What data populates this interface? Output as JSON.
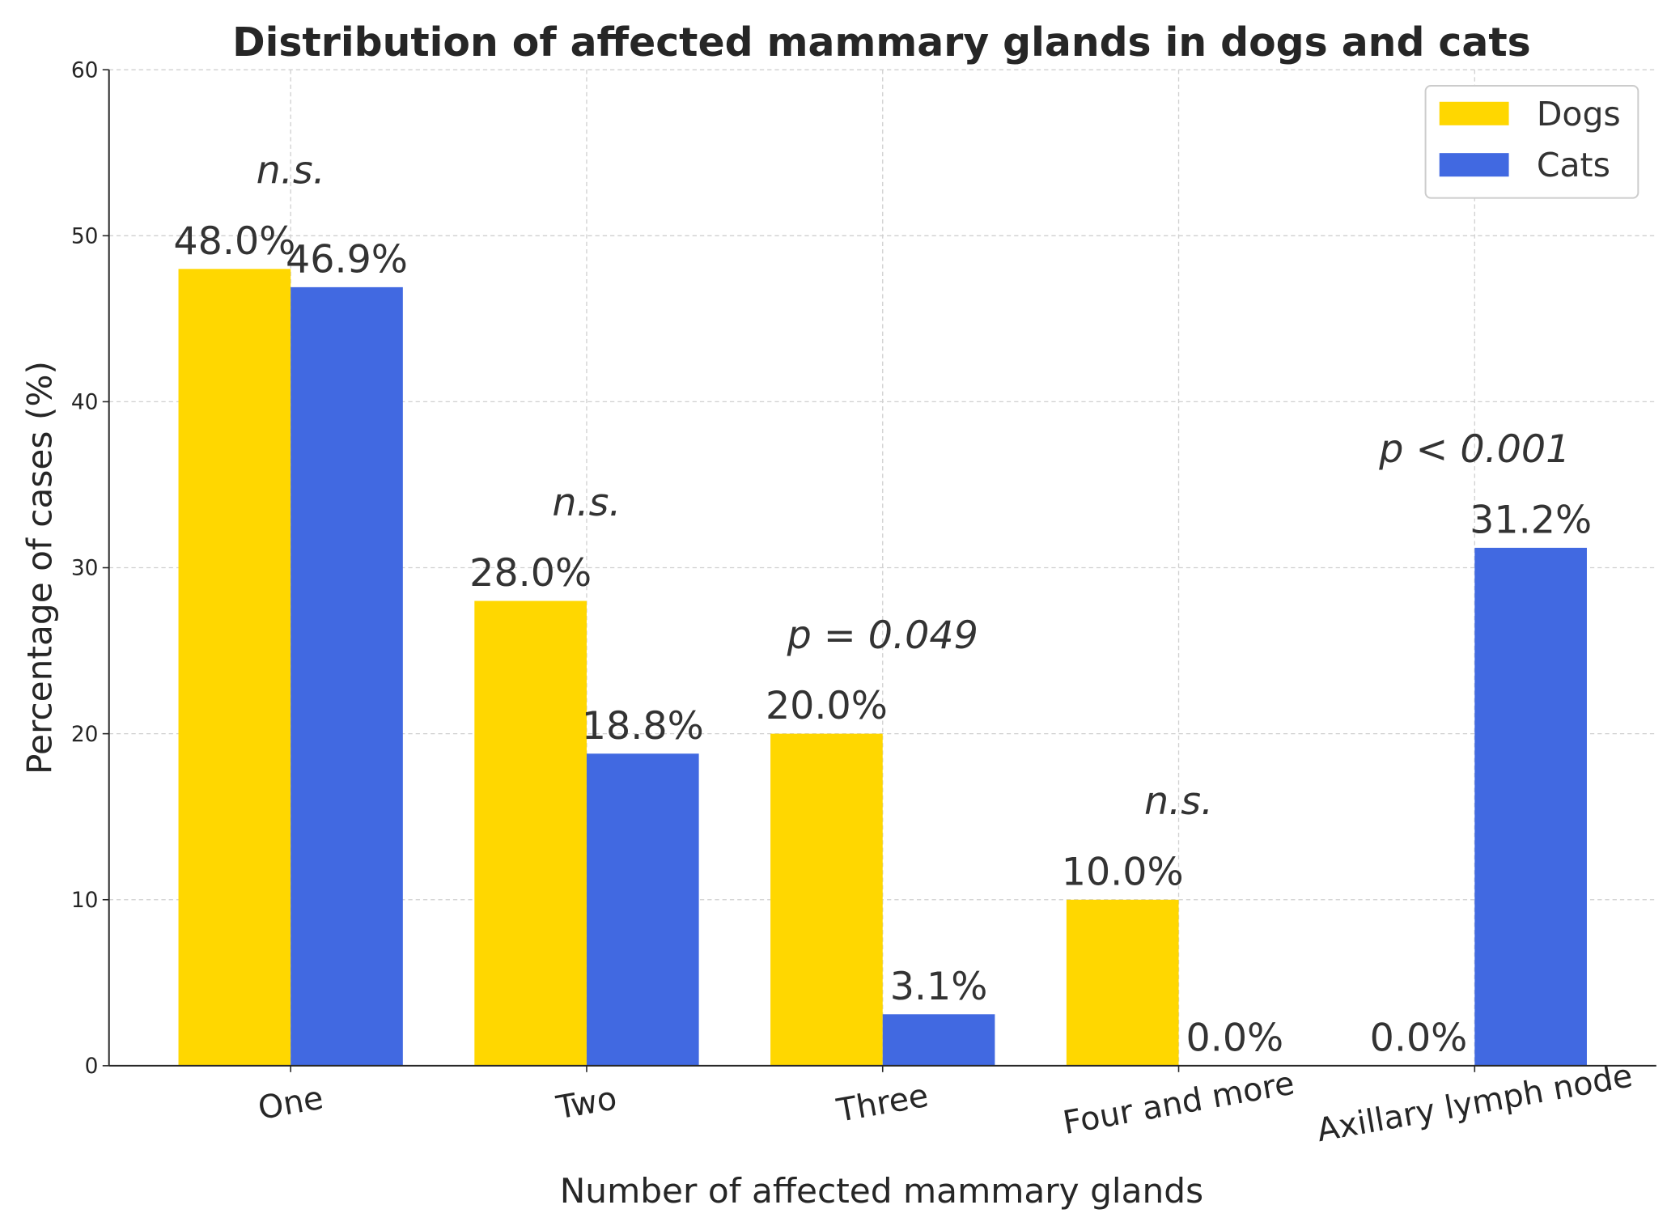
{
  "chart_data": {
    "type": "bar",
    "title": "Distribution of affected mammary glands in dogs and cats",
    "xlabel": "Number of affected mammary glands",
    "ylabel": "Percentage of cases (%)",
    "ylim": [
      0,
      60
    ],
    "yticks": [
      0,
      10,
      20,
      30,
      40,
      50,
      60
    ],
    "grid": true,
    "legend_position": "top-right",
    "categories": [
      "One",
      "Two",
      "Three",
      "Four and more",
      "Axillary lymph node"
    ],
    "series": [
      {
        "name": "Dogs",
        "color": "#FFD700",
        "values": [
          48.0,
          28.0,
          20.0,
          10.0,
          0.0
        ],
        "labels": [
          "48.0%",
          "28.0%",
          "20.0%",
          "10.0%",
          "0.0%"
        ]
      },
      {
        "name": "Cats",
        "color": "#4169E1",
        "values": [
          46.9,
          18.8,
          3.1,
          0.0,
          31.2
        ],
        "labels": [
          "46.9%",
          "18.8%",
          "3.1%",
          "0.0%",
          "31.2%"
        ]
      }
    ],
    "annotations": [
      "n.s.",
      "n.s.",
      "p = 0.049",
      "n.s.",
      "p < 0.001"
    ]
  }
}
